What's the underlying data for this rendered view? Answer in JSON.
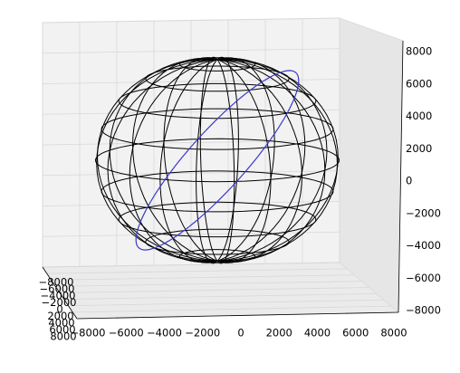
{
  "chart_data": {
    "type": "wireframe3d",
    "xlim": [
      -8000,
      8000
    ],
    "xticks": [
      {
        "value": -8000,
        "label": "−8000"
      },
      {
        "value": -6000,
        "label": "−6000"
      },
      {
        "value": -4000,
        "label": "−4000"
      },
      {
        "value": -2000,
        "label": "−2000"
      },
      0,
      2000,
      4000,
      6000,
      8000
    ],
    "ylim": [
      -8000,
      8000
    ],
    "yticks": [
      {
        "value": -8000,
        "label": "−8000"
      },
      {
        "value": -6000,
        "label": "−6000"
      },
      {
        "value": -4000,
        "label": "−4000"
      },
      {
        "value": -2000,
        "label": "−2000"
      },
      0,
      2000,
      4000,
      6000,
      8000
    ],
    "zlim": [
      -8000,
      8000
    ],
    "zticks": [
      {
        "value": -8000,
        "label": "−8000"
      },
      {
        "value": -6000,
        "label": "−6000"
      },
      {
        "value": -4000,
        "label": "−4000"
      },
      {
        "value": -2000,
        "label": "−2000"
      },
      0,
      2000,
      4000,
      6000,
      8000
    ],
    "grid": true,
    "sphere": {
      "radius": 6371,
      "meridians": 20,
      "parallels": 10,
      "color": "#000000"
    },
    "orbit": {
      "radius": 6800,
      "tilt": 52,
      "color": "#3a3acc"
    }
  }
}
